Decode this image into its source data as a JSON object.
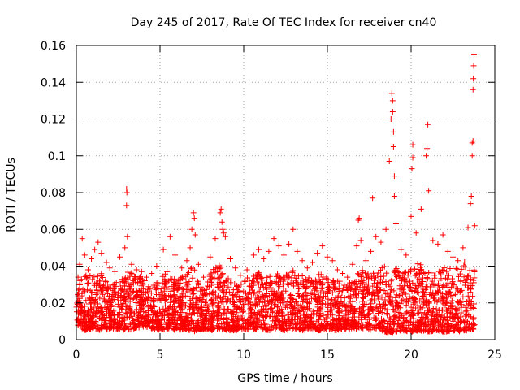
{
  "chart_data": {
    "type": "scatter",
    "title": "Day 245 of 2017, Rate Of TEC Index for receiver cn40",
    "xlabel": "GPS time / hours",
    "ylabel": "ROTI / TECUs",
    "xlim": [
      0,
      25
    ],
    "ylim": [
      0,
      0.16
    ],
    "x_ticks": [
      0,
      5,
      10,
      15,
      20,
      25
    ],
    "x_tick_labels": [
      "0",
      "5",
      "10",
      "15",
      "20",
      "25"
    ],
    "y_ticks": [
      0,
      0.02,
      0.04,
      0.06,
      0.08,
      0.1,
      0.12,
      0.14,
      0.16
    ],
    "y_tick_labels": [
      "0",
      "0.02",
      "0.04",
      "0.06",
      "0.08",
      "0.1",
      "0.12",
      "0.14",
      "0.16"
    ],
    "grid": true,
    "marker": "+",
    "color": "#ff0000",
    "series": [
      {
        "name": "ROTI",
        "points": [
          [
            0.1,
            0.034
          ],
          [
            0.2,
            0.041
          ],
          [
            0.35,
            0.055
          ],
          [
            0.5,
            0.046
          ],
          [
            0.7,
            0.038
          ],
          [
            0.9,
            0.044
          ],
          [
            1.1,
            0.049
          ],
          [
            1.3,
            0.053
          ],
          [
            1.5,
            0.047
          ],
          [
            1.8,
            0.042
          ],
          [
            2.0,
            0.039
          ],
          [
            2.3,
            0.037
          ],
          [
            2.6,
            0.045
          ],
          [
            2.9,
            0.05
          ],
          [
            3.0,
            0.082
          ],
          [
            3.02,
            0.08
          ],
          [
            3.0,
            0.073
          ],
          [
            3.05,
            0.056
          ],
          [
            3.3,
            0.041
          ],
          [
            3.6,
            0.038
          ],
          [
            3.9,
            0.037
          ],
          [
            4.2,
            0.034
          ],
          [
            4.5,
            0.036
          ],
          [
            4.8,
            0.04
          ],
          [
            5.2,
            0.049
          ],
          [
            5.6,
            0.056
          ],
          [
            5.9,
            0.046
          ],
          [
            6.3,
            0.039
          ],
          [
            6.6,
            0.043
          ],
          [
            6.8,
            0.05
          ],
          [
            6.9,
            0.06
          ],
          [
            7.0,
            0.069
          ],
          [
            7.05,
            0.066
          ],
          [
            7.1,
            0.057
          ],
          [
            7.3,
            0.041
          ],
          [
            7.6,
            0.034
          ],
          [
            8.0,
            0.045
          ],
          [
            8.3,
            0.055
          ],
          [
            8.6,
            0.069
          ],
          [
            8.65,
            0.071
          ],
          [
            8.7,
            0.064
          ],
          [
            8.75,
            0.06
          ],
          [
            8.8,
            0.058
          ],
          [
            8.9,
            0.056
          ],
          [
            9.2,
            0.044
          ],
          [
            9.5,
            0.039
          ],
          [
            9.8,
            0.035
          ],
          [
            10.2,
            0.038
          ],
          [
            10.6,
            0.046
          ],
          [
            10.9,
            0.049
          ],
          [
            11.2,
            0.044
          ],
          [
            11.5,
            0.048
          ],
          [
            11.8,
            0.055
          ],
          [
            12.1,
            0.051
          ],
          [
            12.4,
            0.046
          ],
          [
            12.7,
            0.052
          ],
          [
            12.95,
            0.06
          ],
          [
            13.2,
            0.048
          ],
          [
            13.5,
            0.043
          ],
          [
            13.8,
            0.039
          ],
          [
            14.1,
            0.042
          ],
          [
            14.4,
            0.047
          ],
          [
            14.7,
            0.051
          ],
          [
            15.0,
            0.045
          ],
          [
            15.3,
            0.043
          ],
          [
            15.6,
            0.038
          ],
          [
            15.9,
            0.036
          ],
          [
            16.2,
            0.034
          ],
          [
            16.5,
            0.041
          ],
          [
            16.75,
            0.051
          ],
          [
            16.85,
            0.065
          ],
          [
            16.9,
            0.066
          ],
          [
            17.0,
            0.054
          ],
          [
            17.3,
            0.043
          ],
          [
            17.6,
            0.048
          ],
          [
            17.7,
            0.077
          ],
          [
            17.9,
            0.056
          ],
          [
            18.2,
            0.053
          ],
          [
            18.5,
            0.06
          ],
          [
            18.7,
            0.097
          ],
          [
            18.8,
            0.12
          ],
          [
            18.85,
            0.134
          ],
          [
            18.9,
            0.13
          ],
          [
            18.9,
            0.124
          ],
          [
            18.95,
            0.113
          ],
          [
            18.95,
            0.105
          ],
          [
            19.0,
            0.089
          ],
          [
            19.0,
            0.078
          ],
          [
            19.1,
            0.063
          ],
          [
            19.4,
            0.049
          ],
          [
            19.7,
            0.046
          ],
          [
            20.0,
            0.067
          ],
          [
            20.05,
            0.093
          ],
          [
            20.1,
            0.099
          ],
          [
            20.1,
            0.106
          ],
          [
            20.3,
            0.058
          ],
          [
            20.6,
            0.071
          ],
          [
            20.9,
            0.1
          ],
          [
            20.95,
            0.104
          ],
          [
            21.0,
            0.117
          ],
          [
            21.05,
            0.081
          ],
          [
            21.3,
            0.054
          ],
          [
            21.6,
            0.052
          ],
          [
            21.9,
            0.057
          ],
          [
            22.2,
            0.048
          ],
          [
            22.5,
            0.045
          ],
          [
            22.8,
            0.043
          ],
          [
            23.1,
            0.05
          ],
          [
            23.4,
            0.061
          ],
          [
            23.55,
            0.074
          ],
          [
            23.6,
            0.078
          ],
          [
            23.65,
            0.1
          ],
          [
            23.65,
            0.107
          ],
          [
            23.7,
            0.108
          ],
          [
            23.7,
            0.136
          ],
          [
            23.72,
            0.142
          ],
          [
            23.74,
            0.149
          ],
          [
            23.76,
            0.155
          ],
          [
            23.8,
            0.062
          ]
        ]
      }
    ],
    "envelope": {
      "description": "dense base band of points between lower and upper ROTI bounds",
      "x": [
        0,
        0.5,
        1,
        1.5,
        2,
        2.5,
        3,
        3.5,
        4,
        4.5,
        5,
        5.5,
        6,
        6.5,
        7,
        7.5,
        8,
        8.5,
        9,
        9.5,
        10,
        10.5,
        11,
        11.5,
        12,
        12.5,
        13,
        13.5,
        14,
        14.5,
        15,
        15.5,
        16,
        16.5,
        17,
        17.5,
        18,
        18.5,
        19,
        19.5,
        20,
        20.5,
        21,
        21.5,
        22,
        22.5,
        23,
        23.5,
        23.8
      ],
      "lower": [
        0.008,
        0.005,
        0.006,
        0.005,
        0.006,
        0.006,
        0.005,
        0.006,
        0.007,
        0.006,
        0.005,
        0.006,
        0.005,
        0.006,
        0.004,
        0.006,
        0.005,
        0.006,
        0.005,
        0.005,
        0.006,
        0.005,
        0.006,
        0.005,
        0.006,
        0.005,
        0.006,
        0.005,
        0.006,
        0.005,
        0.006,
        0.005,
        0.006,
        0.005,
        0.006,
        0.005,
        0.006,
        0.004,
        0.004,
        0.005,
        0.004,
        0.005,
        0.004,
        0.005,
        0.004,
        0.005,
        0.004,
        0.005,
        0.006
      ],
      "upper": [
        0.03,
        0.036,
        0.034,
        0.036,
        0.03,
        0.032,
        0.038,
        0.035,
        0.034,
        0.03,
        0.033,
        0.038,
        0.032,
        0.036,
        0.04,
        0.03,
        0.036,
        0.042,
        0.034,
        0.03,
        0.032,
        0.038,
        0.036,
        0.035,
        0.036,
        0.035,
        0.038,
        0.035,
        0.034,
        0.036,
        0.035,
        0.034,
        0.03,
        0.032,
        0.04,
        0.035,
        0.038,
        0.042,
        0.04,
        0.036,
        0.04,
        0.042,
        0.038,
        0.036,
        0.04,
        0.038,
        0.042,
        0.045,
        0.04
      ],
      "count": 3200
    }
  }
}
